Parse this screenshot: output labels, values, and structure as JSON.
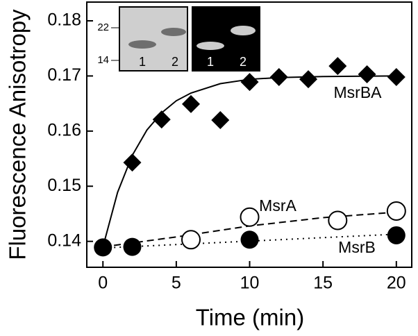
{
  "chart_data": {
    "type": "scatter",
    "xlabel": "Time (min)",
    "ylabel": "Fluorescence Anisotropy",
    "xlim": [
      -1.1,
      21.05
    ],
    "ylim": [
      0.1353,
      0.1834
    ],
    "xticks": [
      0,
      5,
      10,
      15,
      20
    ],
    "yticks": [
      0.14,
      0.15,
      0.16,
      0.17,
      0.18
    ],
    "series": [
      {
        "name": "MsrBA",
        "color": "#000000",
        "marker": "diamond",
        "x": [
          0,
          2,
          4,
          6,
          8,
          10,
          12,
          14,
          16,
          18,
          20
        ],
        "values": [
          0.1389,
          0.1543,
          0.1621,
          0.1649,
          0.162,
          0.1689,
          0.1698,
          0.1694,
          0.1718,
          0.1703,
          0.1698
        ]
      },
      {
        "name": "MsrA",
        "color": "#000000",
        "marker": "open-circle",
        "x": [
          6,
          10,
          16,
          20
        ],
        "values": [
          0.1403,
          0.1444,
          0.1438,
          0.1455
        ]
      },
      {
        "name": "MsrB",
        "color": "#000000",
        "marker": "filled-circle",
        "x": [
          0,
          2,
          10,
          20
        ],
        "values": [
          0.1389,
          0.139,
          0.1403,
          0.1411
        ]
      }
    ],
    "fits": [
      {
        "style": "solid",
        "x": [
          0,
          1,
          2,
          3,
          4,
          5,
          6,
          8,
          10,
          12,
          15,
          20
        ],
        "values": [
          0.139,
          0.1489,
          0.1556,
          0.1602,
          0.1633,
          0.1655,
          0.1669,
          0.1686,
          0.1694,
          0.1697,
          0.1699,
          0.17
        ]
      },
      {
        "style": "dashed",
        "x": [
          0,
          5,
          10,
          15,
          20
        ],
        "values": [
          0.139,
          0.1408,
          0.1428,
          0.1443,
          0.1453
        ]
      },
      {
        "style": "dotted",
        "x": [
          0,
          20
        ],
        "values": [
          0.1388,
          0.1413
        ]
      }
    ],
    "inset": {
      "markers": [
        "22",
        "14"
      ],
      "lanes": [
        "1",
        "2"
      ]
    }
  }
}
